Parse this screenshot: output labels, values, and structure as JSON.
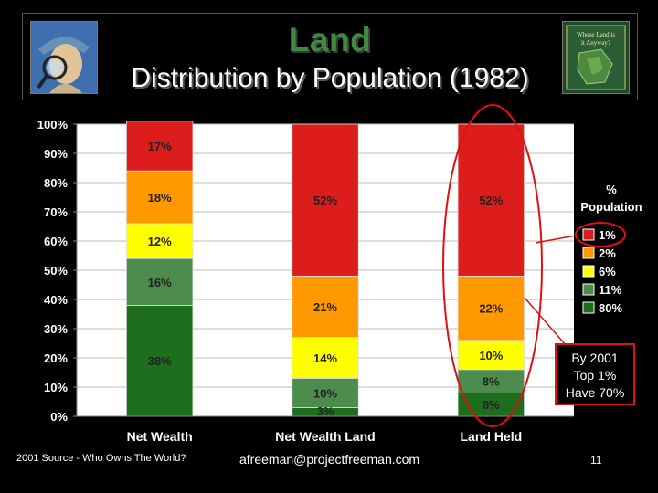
{
  "header": {
    "title": "Land",
    "subtitle": "Distribution by Population (1982)",
    "left_image": "detective-magnifier-illustration",
    "right_image": "book-cover-whose-land-is-it-anyway",
    "right_image_text": "Whose Land is it Anyway?"
  },
  "chart_data": {
    "type": "bar",
    "stacked": true,
    "categories": [
      "Net Wealth",
      "Net Wealth Land",
      "Land Held"
    ],
    "series": [
      {
        "name": "80%",
        "color": "#1d6e1d",
        "values": [
          38,
          3,
          8
        ],
        "labels": [
          "38%",
          "3%",
          "8%"
        ]
      },
      {
        "name": "11%",
        "color": "#4c8c4c",
        "values": [
          16,
          10,
          8
        ],
        "labels": [
          "16%",
          "10%",
          "8%"
        ]
      },
      {
        "name": "6%",
        "color": "#ffff00",
        "values": [
          12,
          14,
          10
        ],
        "labels": [
          "12%",
          "14%",
          "10%"
        ]
      },
      {
        "name": "2%",
        "color": "#ff9900",
        "values": [
          18,
          21,
          22
        ],
        "labels": [
          "18%",
          "21%",
          "22%"
        ]
      },
      {
        "name": "1%",
        "color": "#dd1c1c",
        "values": [
          17,
          52,
          52
        ],
        "labels": [
          "17%",
          "52%",
          "52%"
        ]
      }
    ],
    "ylim": [
      0,
      100
    ],
    "yticks": [
      "0%",
      "10%",
      "20%",
      "30%",
      "40%",
      "50%",
      "60%",
      "70%",
      "80%",
      "90%",
      "100%"
    ],
    "legend_title": [
      "%",
      "Population"
    ],
    "legend_placement": "right",
    "grid": true
  },
  "annotation": {
    "lines": [
      "By 2001",
      "Top 1%",
      "Have 70%"
    ]
  },
  "footer": {
    "source": "2001 Source - Who Owns The World?",
    "email": "afreeman@projectfreeman.com",
    "page": "11"
  }
}
